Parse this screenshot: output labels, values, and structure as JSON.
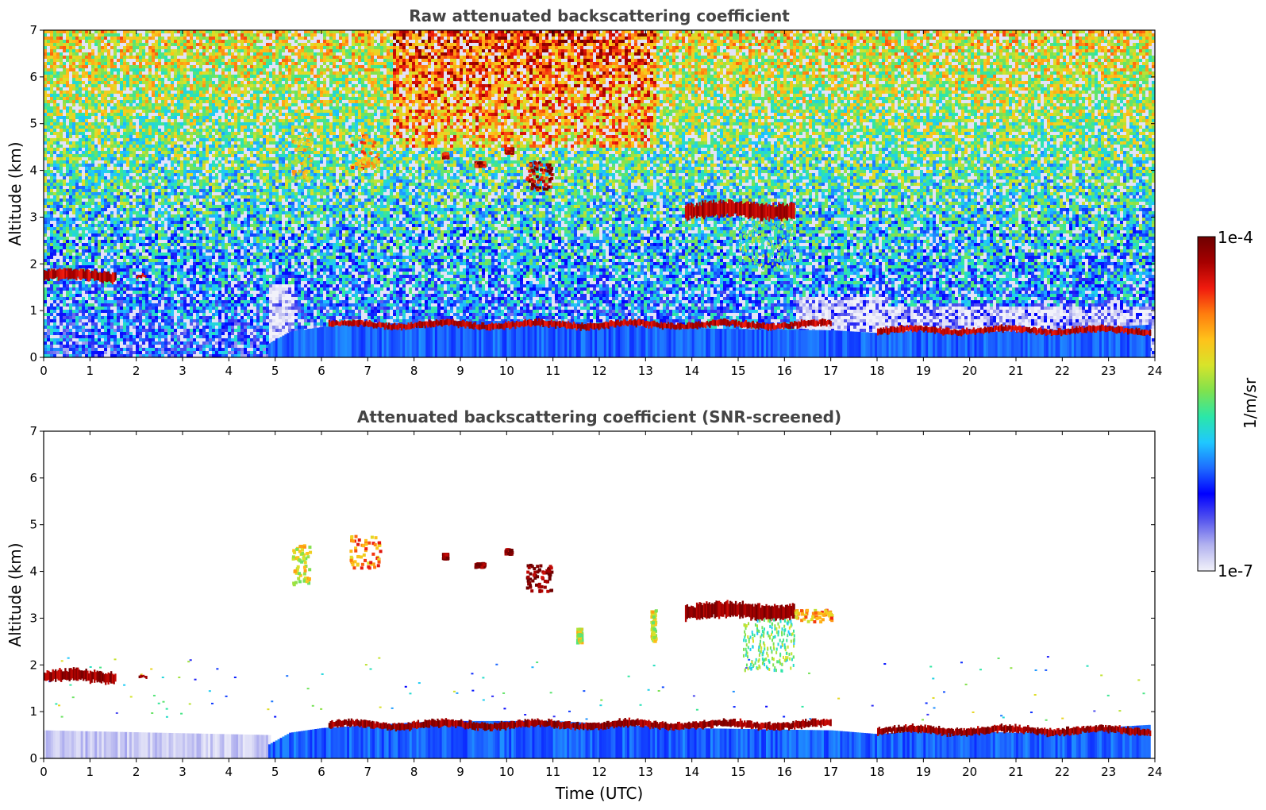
{
  "chart_data": [
    {
      "type": "heatmap",
      "title": "Raw attenuated backscattering coefficient",
      "xlabel": "",
      "ylabel": "Altitude (km)",
      "xlim": [
        0,
        24
      ],
      "ylim": [
        0,
        7
      ],
      "xticks": [
        "0",
        "1",
        "2",
        "3",
        "4",
        "5",
        "6",
        "7",
        "8",
        "9",
        "10",
        "11",
        "12",
        "13",
        "14",
        "15",
        "16",
        "17",
        "18",
        "19",
        "20",
        "21",
        "22",
        "23",
        "24"
      ],
      "yticks": [
        "0",
        "1",
        "2",
        "3",
        "4",
        "5",
        "6",
        "7"
      ],
      "background": "noisy",
      "features": [
        {
          "kind": "cloud-layer",
          "x": [
            0,
            1.55
          ],
          "y": 1.75,
          "thickness": 0.2,
          "level": 0.96
        },
        {
          "kind": "cloud-layer",
          "x": [
            2.0,
            2.2
          ],
          "y": 1.73,
          "thickness": 0.06,
          "level": 0.92
        },
        {
          "kind": "aerosol-band",
          "x": [
            4.85,
            23.9
          ],
          "top": [
            [
              4.85,
              0.3
            ],
            [
              5.3,
              0.55
            ],
            [
              6.0,
              0.65
            ],
            [
              8.5,
              0.78
            ],
            [
              11.0,
              0.78
            ],
            [
              13.8,
              0.62
            ],
            [
              17.0,
              0.58
            ],
            [
              18.0,
              0.52
            ],
            [
              19.0,
              0.58
            ],
            [
              21.0,
              0.55
            ],
            [
              23.9,
              0.7
            ]
          ],
          "level": 0.3
        },
        {
          "kind": "pbl-top",
          "x": [
            6.15,
            17.0
          ],
          "y": 0.7,
          "thickness": 0.12,
          "level": 0.96
        },
        {
          "kind": "pbl-top",
          "x": [
            18.0,
            23.9
          ],
          "y": 0.58,
          "thickness": 0.12,
          "level": 0.96
        },
        {
          "kind": "cloud-patch",
          "x": [
            5.35,
            5.75
          ],
          "y": [
            3.8,
            4.9
          ],
          "level": 0.65
        },
        {
          "kind": "cloud-patch",
          "x": [
            6.6,
            7.2
          ],
          "y": [
            4.0,
            4.8
          ],
          "level": 0.72
        },
        {
          "kind": "cloud-patch",
          "x": [
            8.6,
            8.7
          ],
          "y": [
            4.3,
            4.4
          ],
          "level": 0.9
        },
        {
          "kind": "cloud-patch",
          "x": [
            9.3,
            9.5
          ],
          "y": [
            4.12,
            4.2
          ],
          "level": 0.92
        },
        {
          "kind": "cloud-patch",
          "x": [
            9.95,
            10.1
          ],
          "y": [
            4.4,
            4.5
          ],
          "level": 0.92
        },
        {
          "kind": "cloud-patch",
          "x": [
            10.4,
            10.95
          ],
          "y": [
            3.6,
            4.2
          ],
          "level": 0.92
        },
        {
          "kind": "cloud-layer",
          "x": [
            13.85,
            16.2
          ],
          "y": 3.15,
          "thickness": 0.3,
          "level": 0.97
        },
        {
          "kind": "virga",
          "x": [
            15.0,
            16.2
          ],
          "y": [
            1.9,
            3.0
          ],
          "level": 0.5
        }
      ]
    },
    {
      "type": "heatmap",
      "title": "Attenuated backscattering coefficient (SNR-screened)",
      "xlabel": "Time (UTC)",
      "ylabel": "Altitude (km)",
      "xlim": [
        0,
        24
      ],
      "ylim": [
        0,
        7
      ],
      "xticks": [
        "0",
        "1",
        "2",
        "3",
        "4",
        "5",
        "6",
        "7",
        "8",
        "9",
        "10",
        "11",
        "12",
        "13",
        "14",
        "15",
        "16",
        "17",
        "18",
        "19",
        "20",
        "21",
        "22",
        "23",
        "24"
      ],
      "yticks": [
        "0",
        "1",
        "2",
        "3",
        "4",
        "5",
        "6",
        "7"
      ],
      "background": "screened",
      "features": [
        {
          "kind": "cloud-layer",
          "x": [
            0,
            1.55
          ],
          "y": 1.75,
          "thickness": 0.22,
          "level": 1.0
        },
        {
          "kind": "cloud-layer",
          "x": [
            2.05,
            2.2
          ],
          "y": 1.73,
          "thickness": 0.06,
          "level": 1.0
        },
        {
          "kind": "aerosol-band",
          "x": [
            0,
            4.85
          ],
          "top": [
            [
              0,
              0.6
            ],
            [
              4.85,
              0.5
            ]
          ],
          "level": 0.05
        },
        {
          "kind": "aerosol-band",
          "x": [
            4.85,
            23.9
          ],
          "top": [
            [
              4.85,
              0.3
            ],
            [
              5.3,
              0.55
            ],
            [
              6.0,
              0.65
            ],
            [
              8.5,
              0.8
            ],
            [
              11.0,
              0.8
            ],
            [
              13.8,
              0.65
            ],
            [
              17.0,
              0.6
            ],
            [
              18.0,
              0.52
            ],
            [
              19.0,
              0.6
            ],
            [
              21.0,
              0.55
            ],
            [
              23.9,
              0.72
            ]
          ],
          "level": 0.3
        },
        {
          "kind": "pbl-top",
          "x": [
            6.15,
            17.0
          ],
          "y": 0.72,
          "thickness": 0.14,
          "level": 1.0
        },
        {
          "kind": "pbl-top",
          "x": [
            18.0,
            23.9
          ],
          "y": 0.6,
          "thickness": 0.14,
          "level": 1.0
        },
        {
          "kind": "cloud-patch",
          "x": [
            5.35,
            5.75
          ],
          "y": [
            3.75,
            4.6
          ],
          "level": 0.62
        },
        {
          "kind": "cloud-patch",
          "x": [
            6.6,
            7.25
          ],
          "y": [
            4.1,
            4.8
          ],
          "level": 0.75
        },
        {
          "kind": "cloud-patch",
          "x": [
            8.6,
            8.7
          ],
          "y": [
            4.3,
            4.4
          ],
          "level": 1.0
        },
        {
          "kind": "cloud-patch",
          "x": [
            9.3,
            9.5
          ],
          "y": [
            4.12,
            4.2
          ],
          "level": 1.0
        },
        {
          "kind": "cloud-patch",
          "x": [
            9.95,
            10.1
          ],
          "y": [
            4.4,
            4.5
          ],
          "level": 1.0
        },
        {
          "kind": "cloud-patch",
          "x": [
            10.4,
            10.95
          ],
          "y": [
            3.6,
            4.2
          ],
          "level": 1.0
        },
        {
          "kind": "cloud-patch",
          "x": [
            13.1,
            13.2
          ],
          "y": [
            2.5,
            3.2
          ],
          "level": 0.62
        },
        {
          "kind": "cloud-patch",
          "x": [
            11.5,
            11.6
          ],
          "y": [
            2.5,
            2.8
          ],
          "level": 0.6
        },
        {
          "kind": "cloud-layer",
          "x": [
            13.85,
            16.2
          ],
          "y": 3.15,
          "thickness": 0.3,
          "level": 1.0
        },
        {
          "kind": "cloud-patch",
          "x": [
            16.2,
            17.0
          ],
          "y": [
            2.95,
            3.2
          ],
          "level": 0.72
        },
        {
          "kind": "virga",
          "x": [
            15.1,
            16.2
          ],
          "y": [
            1.9,
            3.0
          ],
          "level": 0.5
        }
      ]
    }
  ],
  "colorbar": {
    "label": "1/m/sr",
    "max_label": "1e-4",
    "min_label": "1e-7",
    "colors": [
      "#f2f2fa",
      "#b3b3ef",
      "#5555ee",
      "#0000ff",
      "#1e6cff",
      "#1fc8ff",
      "#2be7a8",
      "#7fe24e",
      "#d7e32a",
      "#ffc21a",
      "#ff7d0e",
      "#f01a0e",
      "#a60000",
      "#6e0000"
    ]
  }
}
